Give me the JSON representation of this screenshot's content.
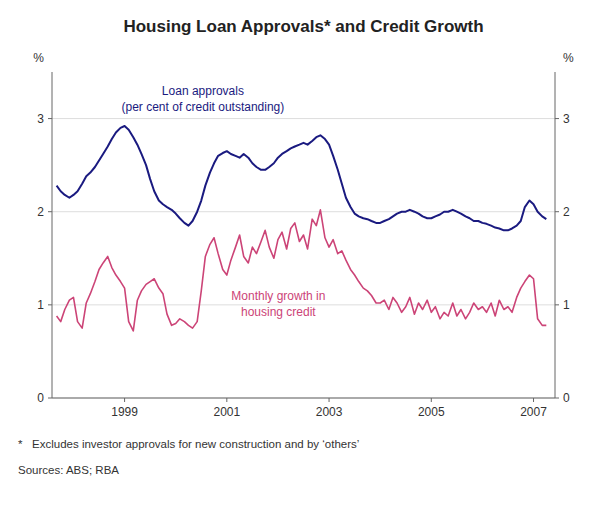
{
  "chart_data": {
    "type": "line",
    "title": "Housing Loan Approvals* and Credit Growth",
    "y_label": "%",
    "y2_label": "%",
    "annotations": [
      "*   Excludes investor approvals for new construction and by ‘others’",
      "Sources: ABS; RBA"
    ],
    "xlim": [
      1997.58,
      2007.42
    ],
    "xticks": [
      1999,
      2001,
      2003,
      2005,
      2007
    ],
    "ylim": [
      0,
      3.5
    ],
    "yticks": [
      0,
      1,
      2,
      3
    ],
    "y2lim": [
      0,
      3.5
    ],
    "y2ticks": [
      0,
      1,
      2,
      3
    ],
    "grid": true,
    "x": [
      1997.67,
      1997.75,
      1997.83,
      1997.92,
      1998.0,
      1998.08,
      1998.17,
      1998.25,
      1998.33,
      1998.42,
      1998.5,
      1998.58,
      1998.67,
      1998.75,
      1998.83,
      1998.92,
      1999.0,
      1999.08,
      1999.17,
      1999.25,
      1999.33,
      1999.42,
      1999.5,
      1999.58,
      1999.67,
      1999.75,
      1999.83,
      1999.92,
      2000.0,
      2000.08,
      2000.17,
      2000.25,
      2000.33,
      2000.42,
      2000.5,
      2000.58,
      2000.67,
      2000.75,
      2000.83,
      2000.92,
      2001.0,
      2001.08,
      2001.17,
      2001.25,
      2001.33,
      2001.42,
      2001.5,
      2001.58,
      2001.67,
      2001.75,
      2001.83,
      2001.92,
      2002.0,
      2002.08,
      2002.17,
      2002.25,
      2002.33,
      2002.42,
      2002.5,
      2002.58,
      2002.67,
      2002.75,
      2002.83,
      2002.92,
      2003.0,
      2003.08,
      2003.17,
      2003.25,
      2003.33,
      2003.42,
      2003.5,
      2003.58,
      2003.67,
      2003.75,
      2003.83,
      2003.92,
      2004.0,
      2004.08,
      2004.17,
      2004.25,
      2004.33,
      2004.42,
      2004.5,
      2004.58,
      2004.67,
      2004.75,
      2004.83,
      2004.92,
      2005.0,
      2005.08,
      2005.17,
      2005.25,
      2005.33,
      2005.42,
      2005.5,
      2005.58,
      2005.67,
      2005.75,
      2005.83,
      2005.92,
      2006.0,
      2006.08,
      2006.17,
      2006.25,
      2006.33,
      2006.42,
      2006.5,
      2006.58,
      2006.67,
      2006.75,
      2006.83,
      2006.92,
      2007.0,
      2007.08,
      2007.17,
      2007.25
    ],
    "series": [
      {
        "name": "Loan approvals\n(per cent of credit outstanding)",
        "color": "#1a1a80",
        "values": [
          2.28,
          2.22,
          2.18,
          2.15,
          2.18,
          2.22,
          2.3,
          2.38,
          2.42,
          2.48,
          2.55,
          2.62,
          2.7,
          2.78,
          2.85,
          2.9,
          2.92,
          2.88,
          2.8,
          2.72,
          2.62,
          2.5,
          2.35,
          2.22,
          2.12,
          2.08,
          2.05,
          2.02,
          1.98,
          1.93,
          1.88,
          1.85,
          1.9,
          2.0,
          2.12,
          2.28,
          2.42,
          2.52,
          2.6,
          2.63,
          2.65,
          2.62,
          2.6,
          2.58,
          2.62,
          2.58,
          2.52,
          2.48,
          2.45,
          2.45,
          2.48,
          2.52,
          2.58,
          2.62,
          2.65,
          2.68,
          2.7,
          2.72,
          2.74,
          2.72,
          2.76,
          2.8,
          2.82,
          2.78,
          2.72,
          2.6,
          2.45,
          2.3,
          2.15,
          2.05,
          1.98,
          1.95,
          1.93,
          1.92,
          1.9,
          1.88,
          1.88,
          1.9,
          1.92,
          1.95,
          1.98,
          2.0,
          2.0,
          2.02,
          2.0,
          1.98,
          1.95,
          1.93,
          1.93,
          1.95,
          1.97,
          2.0,
          2.0,
          2.02,
          2.0,
          1.98,
          1.95,
          1.93,
          1.9,
          1.9,
          1.88,
          1.87,
          1.85,
          1.83,
          1.82,
          1.8,
          1.8,
          1.82,
          1.85,
          1.9,
          2.05,
          2.12,
          2.08,
          2.0,
          1.95,
          1.92
        ]
      },
      {
        "name": "Monthly growth in\nhousing credit",
        "color": "#cc4477",
        "values": [
          0.88,
          0.82,
          0.95,
          1.05,
          1.08,
          0.82,
          0.75,
          1.02,
          1.12,
          1.25,
          1.38,
          1.45,
          1.52,
          1.4,
          1.32,
          1.25,
          1.18,
          0.82,
          0.72,
          1.05,
          1.15,
          1.22,
          1.25,
          1.28,
          1.18,
          1.12,
          0.9,
          0.78,
          0.8,
          0.85,
          0.82,
          0.78,
          0.75,
          0.82,
          1.15,
          1.52,
          1.65,
          1.72,
          1.55,
          1.38,
          1.32,
          1.48,
          1.62,
          1.75,
          1.52,
          1.45,
          1.62,
          1.55,
          1.68,
          1.8,
          1.62,
          1.5,
          1.7,
          1.78,
          1.6,
          1.82,
          1.88,
          1.68,
          1.75,
          1.6,
          1.92,
          1.85,
          2.02,
          1.72,
          1.62,
          1.7,
          1.55,
          1.58,
          1.48,
          1.38,
          1.32,
          1.25,
          1.18,
          1.15,
          1.1,
          1.02,
          1.02,
          1.05,
          0.95,
          1.08,
          1.02,
          0.92,
          0.98,
          1.08,
          0.9,
          1.02,
          0.95,
          1.05,
          0.92,
          0.98,
          0.85,
          0.92,
          0.88,
          1.02,
          0.88,
          0.95,
          0.85,
          0.92,
          1.02,
          0.95,
          0.98,
          0.92,
          1.02,
          0.88,
          1.05,
          0.95,
          0.98,
          0.92,
          1.08,
          1.18,
          1.25,
          1.32,
          1.28,
          0.85,
          0.78,
          0.78
        ]
      }
    ]
  }
}
